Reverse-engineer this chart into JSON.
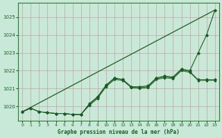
{
  "title": "Graphe pression niveau de la mer (hPa)",
  "bg_color": "#c8e8d8",
  "grid_color": "#c8a0a0",
  "line_color": "#1a5c20",
  "border_color": "#2a7a30",
  "xlim": [
    -0.5,
    23.5
  ],
  "ylim": [
    1019.2,
    1025.8
  ],
  "yticks": [
    1020,
    1021,
    1022,
    1023,
    1024,
    1025
  ],
  "xticks": [
    0,
    1,
    2,
    3,
    4,
    5,
    6,
    7,
    8,
    9,
    10,
    11,
    12,
    13,
    14,
    15,
    16,
    17,
    18,
    19,
    20,
    21,
    22,
    23
  ],
  "straight_line": [
    [
      0,
      1019.7
    ],
    [
      23,
      1025.4
    ]
  ],
  "series1": [
    1019.7,
    1019.9,
    1019.7,
    1019.65,
    1019.6,
    1019.6,
    1019.55,
    1019.55,
    1020.1,
    1020.5,
    1021.15,
    1021.55,
    1021.5,
    1021.1,
    1021.05,
    1021.1,
    1021.55,
    1021.65,
    1021.6,
    1022.05,
    1021.95,
    1021.5,
    1021.5,
    1021.5
  ],
  "series2": [
    1019.7,
    1019.9,
    1019.7,
    1019.65,
    1019.6,
    1019.6,
    1019.55,
    1019.55,
    1020.15,
    1020.55,
    1021.2,
    1021.6,
    1021.5,
    1021.1,
    1021.1,
    1021.15,
    1021.6,
    1021.7,
    1021.65,
    1022.1,
    1022.0,
    1023.0,
    1024.0,
    1025.4
  ],
  "series3": [
    1019.7,
    1019.9,
    1019.7,
    1019.65,
    1019.6,
    1019.6,
    1019.55,
    1019.55,
    1020.05,
    1020.45,
    1021.1,
    1021.5,
    1021.45,
    1021.05,
    1021.0,
    1021.05,
    1021.5,
    1021.6,
    1021.55,
    1022.0,
    1021.9,
    1021.45,
    1021.45,
    1021.45
  ]
}
